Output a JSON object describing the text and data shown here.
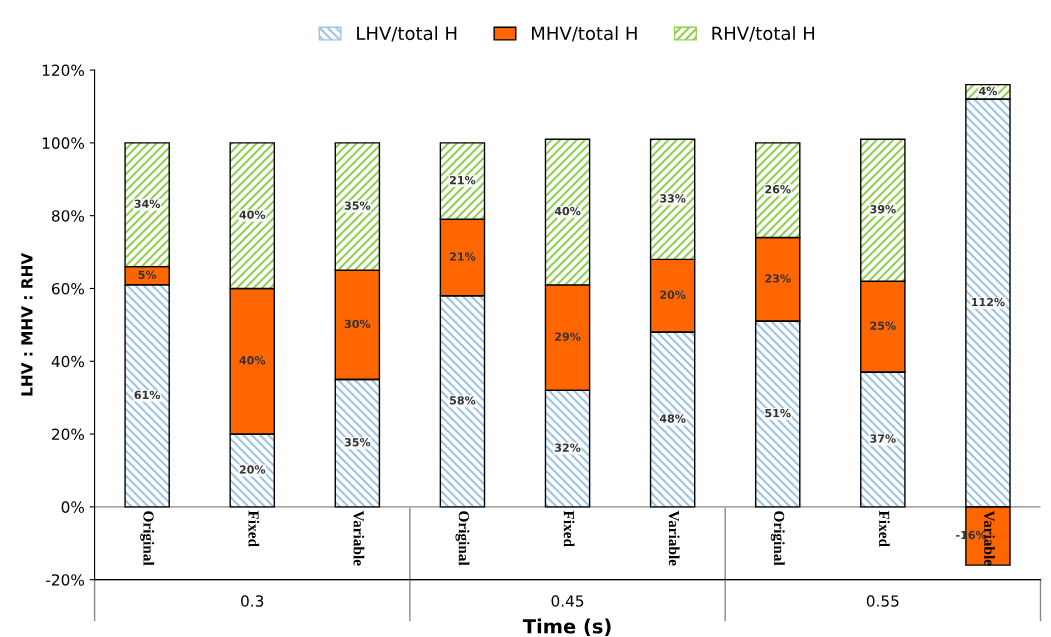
{
  "chart_data": {
    "type": "bar",
    "stacked": true,
    "xlabel": "Time (s)",
    "ylabel": "LHV : MHV : RHV",
    "categories": [
      "Original",
      "Fixed",
      "Variable",
      "Original",
      "Fixed",
      "Variable",
      "Original",
      "Fixed",
      "Variable"
    ],
    "annotations": [
      "0.3",
      "0.45",
      "0.55"
    ],
    "series": [
      {
        "name": "LHV/total H",
        "color": "#9dc3e6",
        "values": [
          61,
          20,
          35,
          58,
          32,
          48,
          51,
          37,
          112
        ],
        "value_labels": [
          "61%",
          "20%",
          "35%",
          "58%",
          "32%",
          "48%",
          "51%",
          "37%",
          "112%"
        ]
      },
      {
        "name": "MHV/total H",
        "color": "#ff6600",
        "values": [
          5,
          40,
          30,
          21,
          29,
          20,
          23,
          25,
          -16
        ],
        "value_labels": [
          "5%",
          "40%",
          "30%",
          "21%",
          "29%",
          "20%",
          "23%",
          "25%",
          "-16%"
        ]
      },
      {
        "name": "RHV/total H",
        "color": "#92d050",
        "values": [
          34,
          40,
          35,
          21,
          40,
          33,
          26,
          39,
          4
        ],
        "value_labels": [
          "34%",
          "40%",
          "35%",
          "21%",
          "40%",
          "33%",
          "26%",
          "39%",
          "4%"
        ]
      }
    ],
    "ylim": [
      -20,
      120
    ],
    "yticks": [
      {
        "value": -20,
        "label": "-20%"
      },
      {
        "value": 0,
        "label": "0%"
      },
      {
        "value": 20,
        "label": "20%"
      },
      {
        "value": 40,
        "label": "40%"
      },
      {
        "value": 60,
        "label": "60%"
      },
      {
        "value": 80,
        "label": "80%"
      },
      {
        "value": 100,
        "label": "100%"
      },
      {
        "value": 120,
        "label": "120%"
      }
    ],
    "grid": false,
    "legend": "top"
  }
}
